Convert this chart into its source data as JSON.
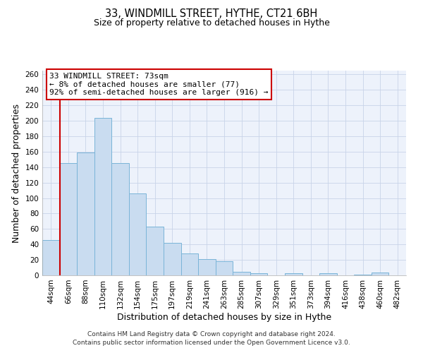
{
  "title": "33, WINDMILL STREET, HYTHE, CT21 6BH",
  "subtitle": "Size of property relative to detached houses in Hythe",
  "xlabel": "Distribution of detached houses by size in Hythe",
  "ylabel": "Number of detached properties",
  "bar_labels": [
    "44sqm",
    "66sqm",
    "88sqm",
    "110sqm",
    "132sqm",
    "154sqm",
    "175sqm",
    "197sqm",
    "219sqm",
    "241sqm",
    "263sqm",
    "285sqm",
    "307sqm",
    "329sqm",
    "351sqm",
    "373sqm",
    "394sqm",
    "416sqm",
    "438sqm",
    "460sqm",
    "482sqm"
  ],
  "bar_values": [
    46,
    145,
    159,
    204,
    145,
    106,
    63,
    42,
    28,
    21,
    18,
    5,
    3,
    0,
    3,
    0,
    3,
    0,
    1,
    4,
    0
  ],
  "bar_color": "#c9dcf0",
  "bar_edge_color": "#7ab4d8",
  "vline_color": "#cc0000",
  "ylim": [
    0,
    265
  ],
  "yticks": [
    0,
    20,
    40,
    60,
    80,
    100,
    120,
    140,
    160,
    180,
    200,
    220,
    240,
    260
  ],
  "annotation_title": "33 WINDMILL STREET: 73sqm",
  "annotation_line1": "← 8% of detached houses are smaller (77)",
  "annotation_line2": "92% of semi-detached houses are larger (916) →",
  "annotation_box_color": "#ffffff",
  "annotation_box_edge": "#cc0000",
  "footer1": "Contains HM Land Registry data © Crown copyright and database right 2024.",
  "footer2": "Contains public sector information licensed under the Open Government Licence v3.0.",
  "bg_color": "#ffffff",
  "plot_bg_color": "#edf2fb",
  "grid_color": "#c8d4e8",
  "title_fontsize": 10.5,
  "subtitle_fontsize": 9,
  "axis_label_fontsize": 9,
  "tick_fontsize": 7.5,
  "annotation_fontsize": 8,
  "footer_fontsize": 6.5
}
